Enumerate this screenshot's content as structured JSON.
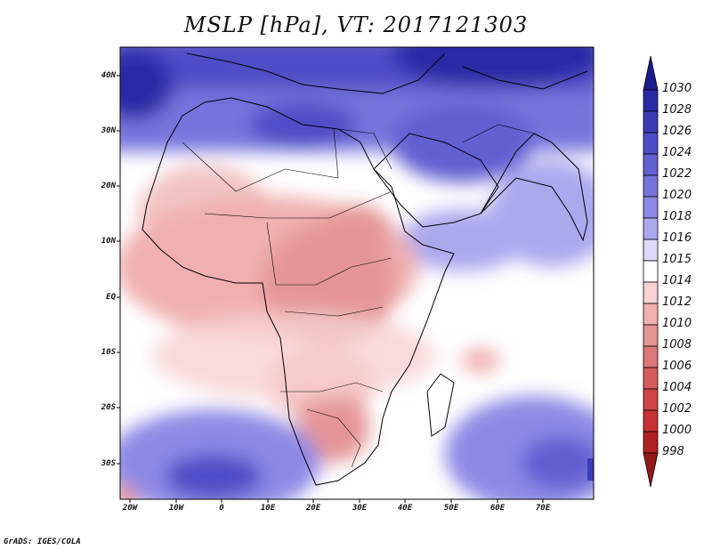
{
  "title": "MSLP [hPa], VT: 2017121303",
  "footer": "GrADS: IGES/COLA",
  "lat_labels": [
    "40N",
    "30N",
    "20N",
    "10N",
    "EQ",
    "10S",
    "20S",
    "30S"
  ],
  "lon_labels": [
    "20W",
    "10W",
    "0",
    "10E",
    "20E",
    "30E",
    "40E",
    "50E",
    "60E",
    "70E"
  ],
  "colorbar": {
    "levels": [
      "1030",
      "1028",
      "1026",
      "1024",
      "1022",
      "1020",
      "1018",
      "1016",
      "1015",
      "1014",
      "1012",
      "1010",
      "1008",
      "1006",
      "1004",
      "1002",
      "1000",
      "998"
    ],
    "colors": [
      "#1b1a8e",
      "#2b2aa6",
      "#3d3cb8",
      "#4f4dc6",
      "#625fd2",
      "#7673dd",
      "#8d8ae6",
      "#aba8ef",
      "#dcdaf8",
      "#ffffff",
      "#f8d2d2",
      "#f0b0b0",
      "#e59595",
      "#dd7878",
      "#d65c5c",
      "#cf4545",
      "#c63232",
      "#b02121",
      "#941818"
    ]
  },
  "map": {
    "land_color": "#f2c3c3",
    "ocean_color": "#ffffff"
  }
}
